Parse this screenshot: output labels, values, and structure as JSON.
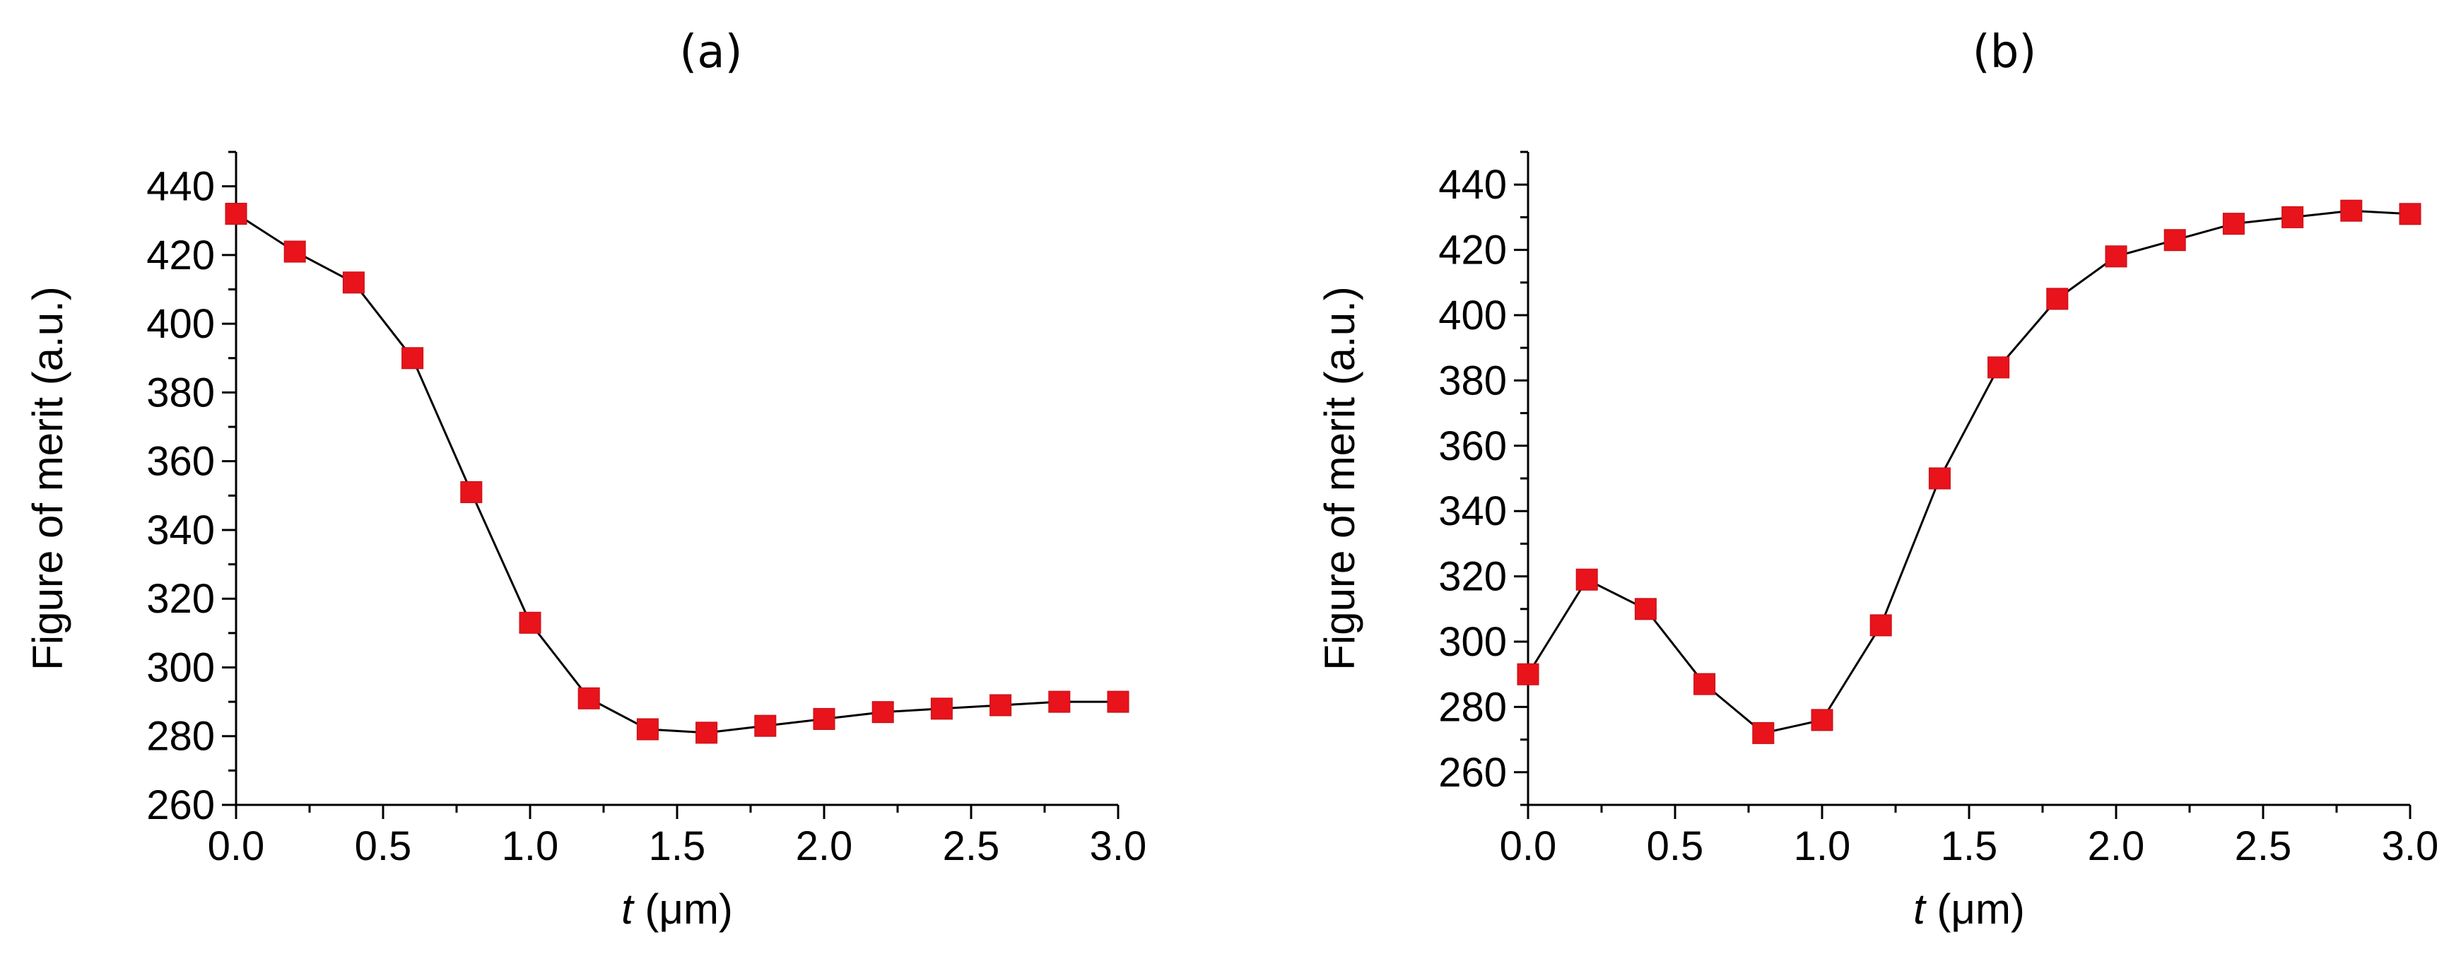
{
  "chart_data": [
    {
      "type": "line",
      "panel_label": "(a)",
      "title": "",
      "xlabel_italic": "t",
      "xlabel_rest": " (μm)",
      "ylabel": "Figure of merit (a.u.)",
      "xlim": [
        0,
        3.0
      ],
      "ylim": [
        260,
        450
      ],
      "xticks": [
        "0.0",
        "0.5",
        "1.0",
        "1.5",
        "2.0",
        "2.5",
        "3.0"
      ],
      "yticks": [
        "260",
        "280",
        "300",
        "320",
        "340",
        "360",
        "380",
        "400",
        "420",
        "440"
      ],
      "grid": false,
      "marker": "square",
      "marker_color": "#e8131b",
      "line_color": "#000000",
      "series": [
        {
          "x": [
            0.0,
            0.2,
            0.4,
            0.6,
            0.8,
            1.0,
            1.2,
            1.4,
            1.6,
            1.8,
            2.0,
            2.2,
            2.4,
            2.6,
            2.8,
            3.0
          ],
          "y": [
            432,
            421,
            412,
            390,
            351,
            313,
            291,
            282,
            281,
            283,
            285,
            287,
            288,
            289,
            290,
            290
          ]
        }
      ]
    },
    {
      "type": "line",
      "panel_label": "(b)",
      "title": "",
      "xlabel_italic": "t",
      "xlabel_rest": " (μm)",
      "ylabel": "Figure of merit (a.u.)",
      "xlim": [
        0,
        3.0
      ],
      "ylim": [
        250,
        450
      ],
      "xticks": [
        "0.0",
        "0.5",
        "1.0",
        "1.5",
        "2.0",
        "2.5",
        "3.0"
      ],
      "yticks": [
        "260",
        "280",
        "300",
        "320",
        "340",
        "360",
        "380",
        "400",
        "420",
        "440"
      ],
      "grid": false,
      "marker": "square",
      "marker_color": "#e8131b",
      "line_color": "#000000",
      "series": [
        {
          "x": [
            0.0,
            0.2,
            0.4,
            0.6,
            0.8,
            1.0,
            1.2,
            1.4,
            1.6,
            1.8,
            2.0,
            2.2,
            2.4,
            2.6,
            2.8,
            3.0
          ],
          "y": [
            290,
            319,
            310,
            287,
            272,
            276,
            305,
            350,
            384,
            405,
            418,
            423,
            428,
            430,
            432,
            431
          ]
        }
      ]
    }
  ]
}
